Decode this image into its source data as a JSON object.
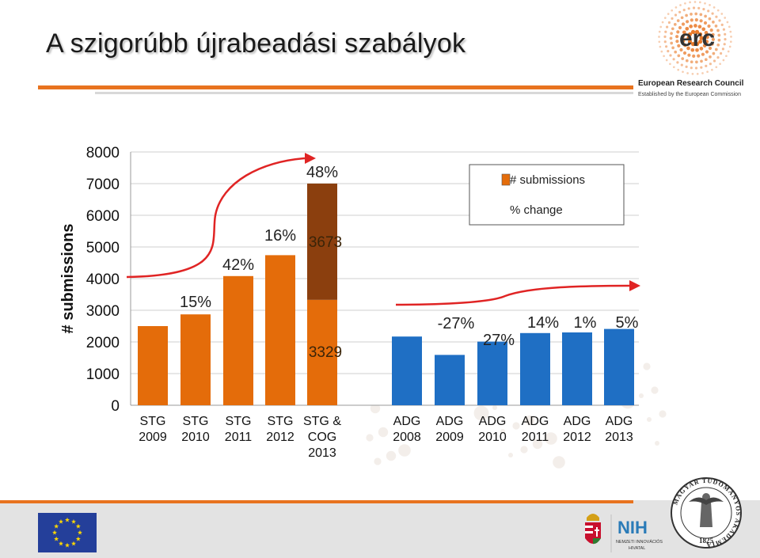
{
  "page": {
    "title": "A szigorúbb újrabeadási szabályok"
  },
  "logos": {
    "erc_mark": "erc",
    "erc_name": "European Research Council",
    "erc_sub": "Established by the European Commission",
    "nih_mark": "NIH",
    "nih_sub1": "NEMZETI INNOVÁCIÓS",
    "nih_sub2": "HIVATAL",
    "mta_year": "1825",
    "mta_ring": "MAGYAR TUDOMÁNYOS AKADÉMIA"
  },
  "colors": {
    "accent_orange": "#e8731f",
    "stg_bar": "#e46c0a",
    "cog_bar": "#8b3f0e",
    "adg_bar": "#1f6fc4",
    "arrow_red": "#e02424",
    "eu_blue": "#243f9a",
    "eu_star": "#ffd800"
  },
  "chart_data": {
    "type": "bar",
    "ylabel": "# submissions",
    "ylim": [
      0,
      8000
    ],
    "yticks": [
      "0",
      "1000",
      "2000",
      "3000",
      "4000",
      "5000",
      "6000",
      "7000",
      "8000"
    ],
    "grid": true,
    "legend": {
      "position": "top-right",
      "entries": [
        "# submissions",
        "% change"
      ]
    },
    "categories": [
      "STG\n2009",
      "STG\n2010",
      "STG\n2011",
      "STG\n2012",
      "STG &\nCOG\n2013",
      "ADG\n2008",
      "ADG\n2009",
      "ADG\n2010",
      "ADG\n2011",
      "ADG\n2012",
      "ADG\n2013"
    ],
    "series": [
      {
        "name": "# submissions",
        "values": [
          2500,
          2870,
          4080,
          4740,
          3329,
          2170,
          1590,
          2010,
          2280,
          2300,
          2410
        ]
      },
      {
        "name": "COG 2013",
        "values": [
          0,
          0,
          0,
          0,
          3673,
          0,
          0,
          0,
          0,
          0,
          0
        ]
      }
    ],
    "pct_change": [
      "",
      "15%",
      "42%",
      "16%",
      "48%",
      "",
      "-27%",
      "27%",
      "14%",
      "1%",
      "5%"
    ],
    "stacked_labels": {
      "stg_2013": "3329",
      "cog_2013": "3673"
    }
  }
}
